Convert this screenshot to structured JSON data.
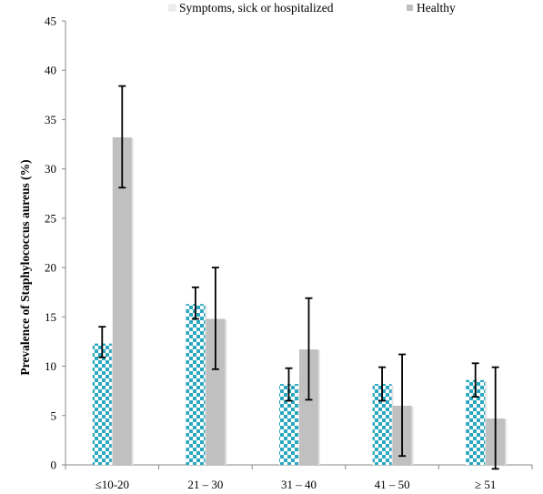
{
  "chart_data": {
    "type": "bar",
    "title": "",
    "xlabel": "",
    "ylabel": "Prevalence of Staphylococcus aureus (%)",
    "ylim": [
      0,
      45
    ],
    "yticks": [
      "0",
      "5",
      "10",
      "15",
      "20",
      "25",
      "30",
      "35",
      "40",
      "45"
    ],
    "grid": false,
    "legend_position": "top",
    "categories": [
      "≤10-20",
      "21 – 30",
      "31 – 40",
      "41 – 50",
      "≥ 51"
    ],
    "series": [
      {
        "name": "Symptoms, sick or hospitalized",
        "values": [
          12.3,
          16.3,
          8.2,
          8.2,
          8.6
        ],
        "error_low": [
          10.9,
          14.8,
          6.5,
          6.5,
          6.9
        ],
        "error_high": [
          14.0,
          18.0,
          9.8,
          9.9,
          10.3
        ],
        "pattern": "checkered",
        "color": "#2aa8bf"
      },
      {
        "name": "Healthy",
        "values": [
          33.2,
          14.8,
          11.7,
          6.0,
          4.7
        ],
        "error_low": [
          28.1,
          9.7,
          6.6,
          0.9,
          -0.4
        ],
        "error_high": [
          38.4,
          20.0,
          16.9,
          11.2,
          9.9
        ],
        "pattern": "solid",
        "color": "#c0c0c0"
      }
    ]
  }
}
